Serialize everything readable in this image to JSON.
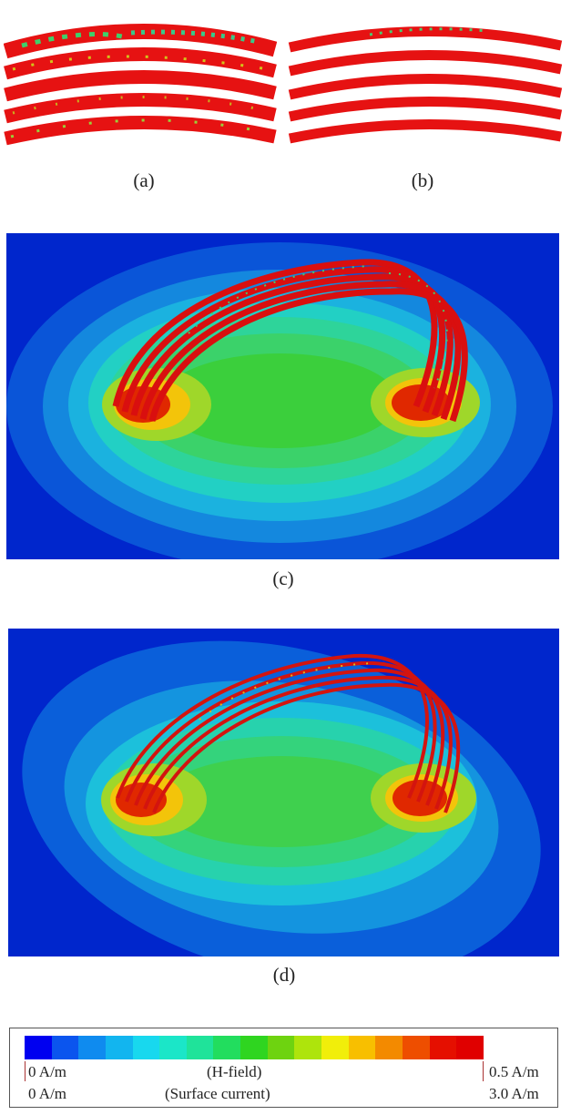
{
  "captions": {
    "a": "(a)",
    "b": "(b)",
    "c": "(c)",
    "d": "(d)"
  },
  "legend": {
    "h_field_min": "0 A/m",
    "h_field_label": "(H-field)",
    "h_field_max": "0.5 A/m",
    "current_min": "0 A/m",
    "current_label": "(Surface current)",
    "current_max": "3.0 A/m",
    "colors": [
      "#0000f0",
      "#0b55ee",
      "#0f8bef",
      "#12b5ef",
      "#18d8ee",
      "#1be6c8",
      "#1fe39a",
      "#22dd5e",
      "#2fd520",
      "#6ed310",
      "#aee40c",
      "#f1ee0a",
      "#f8bf00",
      "#f38a00",
      "#ee4e00",
      "#e50f00",
      "#e00000"
    ]
  },
  "colors": {
    "coil": "#e30e0e",
    "field_outer": "#0023d0",
    "field_mid": "#1fa7df",
    "field_inner": "#28d4a8",
    "field_core": "#3dd24a"
  }
}
